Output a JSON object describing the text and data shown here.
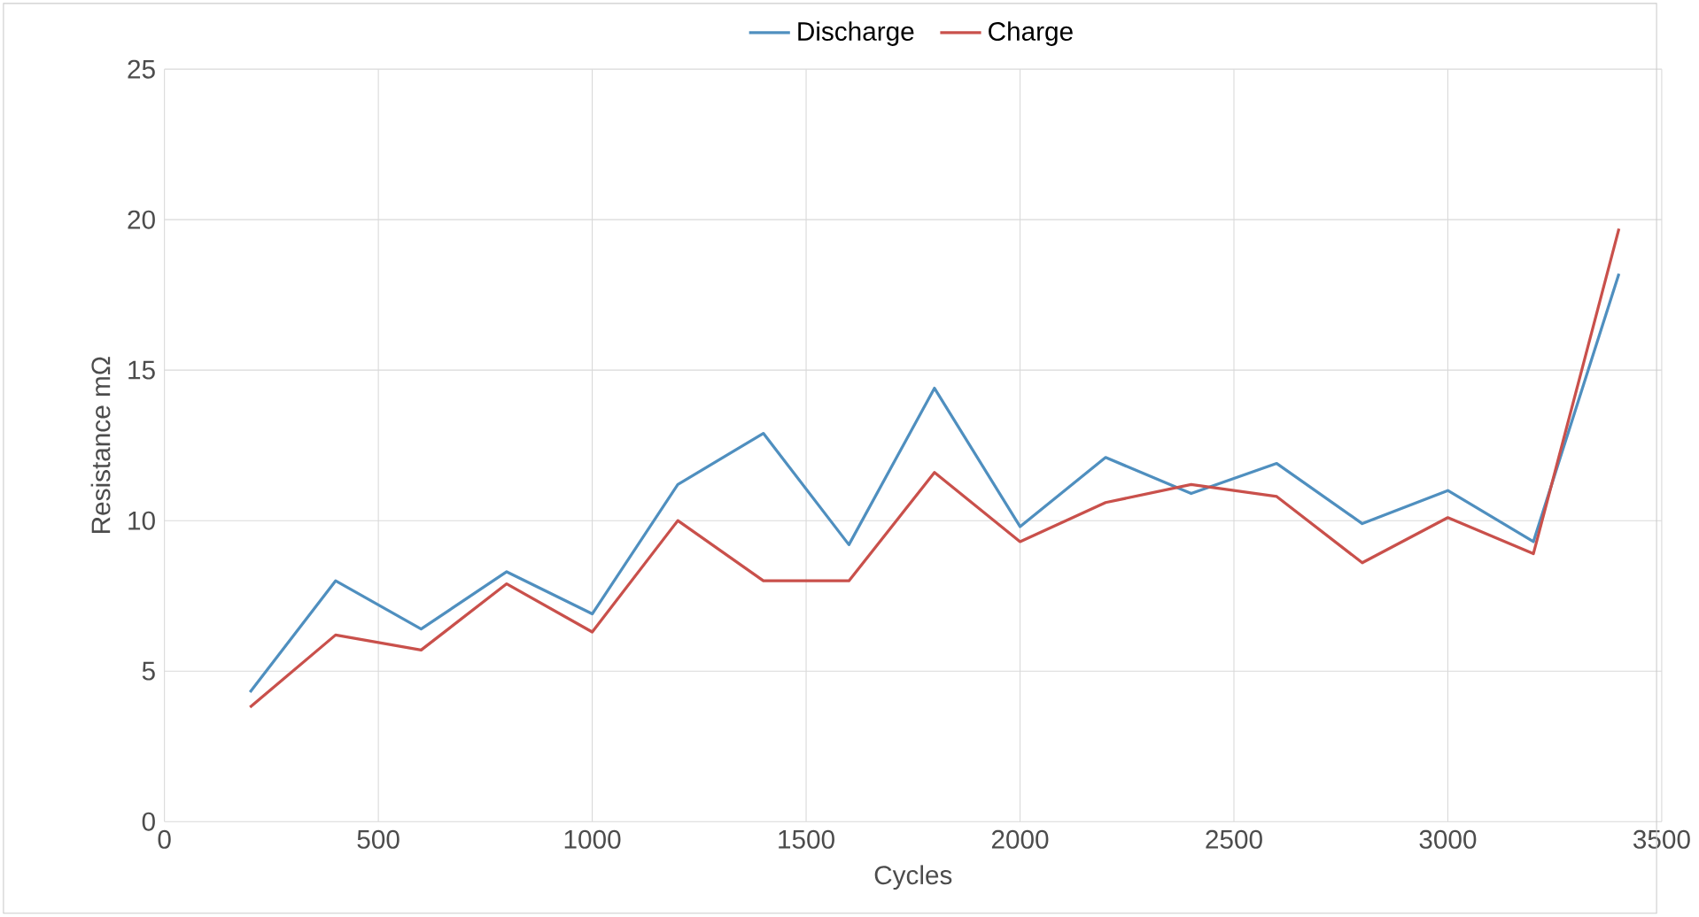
{
  "chart_data": {
    "type": "line",
    "xlabel": "Cycles",
    "ylabel": "Resistance mΩ",
    "x": [
      200,
      400,
      600,
      800,
      1000,
      1200,
      1400,
      1600,
      1800,
      2000,
      2200,
      2400,
      2600,
      2800,
      3000,
      3200,
      3400
    ],
    "series": [
      {
        "name": "Discharge",
        "color": "#4f8fbf",
        "values": [
          4.3,
          8.0,
          6.4,
          8.3,
          6.9,
          11.2,
          12.9,
          9.2,
          14.4,
          9.8,
          12.1,
          10.9,
          11.9,
          9.9,
          11.0,
          9.3,
          18.2
        ]
      },
      {
        "name": "Charge",
        "color": "#c9504b",
        "values": [
          3.8,
          6.2,
          5.7,
          7.9,
          6.3,
          10.0,
          8.0,
          8.0,
          11.6,
          9.3,
          10.6,
          11.2,
          10.8,
          8.6,
          10.1,
          8.9,
          19.7
        ]
      }
    ],
    "xlim": [
      0,
      3500
    ],
    "xticks": [
      0,
      500,
      1000,
      1500,
      2000,
      2500,
      3000,
      3500
    ],
    "ylim": [
      0,
      25
    ],
    "yticks": [
      0,
      5,
      10,
      15,
      20,
      25
    ],
    "grid": true,
    "legend": "top",
    "marker": "none",
    "line_style": "solid"
  }
}
